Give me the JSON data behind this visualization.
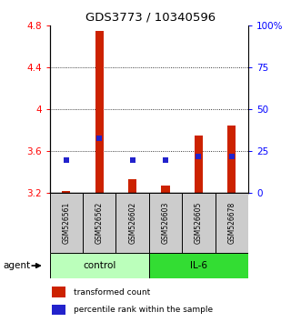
{
  "title": "GDS3773 / 10340596",
  "samples": [
    "GSM526561",
    "GSM526562",
    "GSM526602",
    "GSM526603",
    "GSM526605",
    "GSM526678"
  ],
  "red_bar_values": [
    3.22,
    4.75,
    3.33,
    3.27,
    3.75,
    3.85
  ],
  "red_bar_base": 3.2,
  "blue_percentiles": [
    20,
    33,
    20,
    20,
    22,
    22
  ],
  "ylim_left": [
    3.2,
    4.8
  ],
  "ylim_right": [
    0,
    100
  ],
  "yticks_left": [
    3.2,
    3.6,
    4.0,
    4.4,
    4.8
  ],
  "yticks_right": [
    0,
    25,
    50,
    75,
    100
  ],
  "ytick_labels_left": [
    "3.2",
    "3.6",
    "4",
    "4.4",
    "4.8"
  ],
  "ytick_labels_right": [
    "0",
    "25",
    "50",
    "75",
    "100%"
  ],
  "hlines": [
    3.6,
    4.0,
    4.4
  ],
  "bar_color": "#CC2200",
  "square_color": "#2222CC",
  "control_color": "#BBFFBB",
  "il6_color": "#33DD33",
  "sample_box_color": "#CCCCCC",
  "bar_width": 0.25,
  "square_size": 5,
  "legend_items": [
    {
      "label": "transformed count",
      "color": "#CC2200"
    },
    {
      "label": "percentile rank within the sample",
      "color": "#2222CC"
    }
  ]
}
